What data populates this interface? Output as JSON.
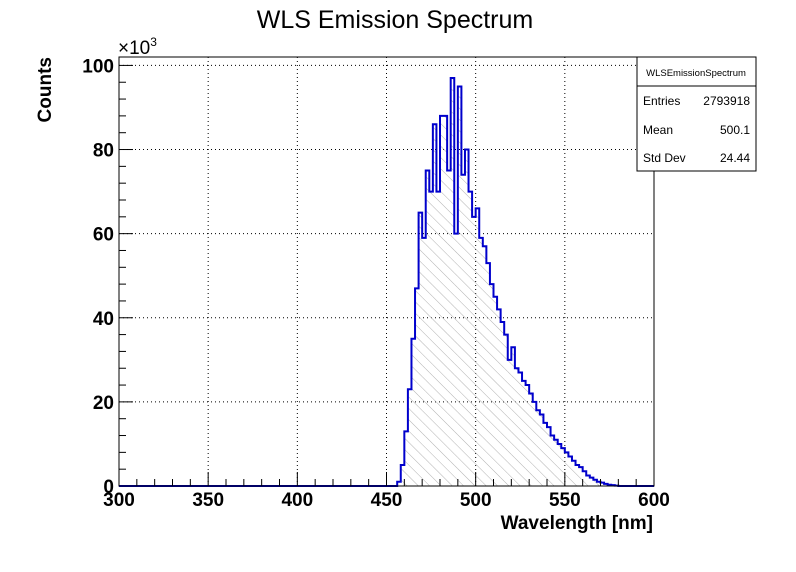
{
  "chart_data": {
    "type": "histogram",
    "title": "WLS Emission Spectrum",
    "xlabel": "Wavelength [nm]",
    "ylabel": "Counts",
    "xlim": [
      300,
      600
    ],
    "ylim": [
      0,
      102000
    ],
    "y_exponent_label": "×10",
    "y_exponent_power": "3",
    "x_ticks": [
      300,
      350,
      400,
      450,
      500,
      550,
      600
    ],
    "x_tick_labels": [
      "300",
      "350",
      "400",
      "450",
      "500",
      "550",
      "600"
    ],
    "y_ticks": [
      0,
      20000,
      40000,
      60000,
      80000,
      100000
    ],
    "y_tick_labels": [
      "0",
      "20",
      "40",
      "60",
      "80",
      "100"
    ],
    "grid": true,
    "line_color": "#0000cc",
    "fill_pattern": "hatched-gray",
    "bin_width": 2,
    "bins_start": 456,
    "counts": [
      1000,
      5000,
      13000,
      23000,
      35000,
      47000,
      65000,
      59000,
      75000,
      70000,
      86000,
      70000,
      88000,
      88000,
      75000,
      97000,
      60000,
      95000,
      74000,
      80000,
      70000,
      64000,
      66000,
      59000,
      57000,
      53000,
      48000,
      45000,
      42000,
      39000,
      36000,
      30000,
      33000,
      28000,
      27000,
      25000,
      24000,
      22000,
      20000,
      18000,
      17000,
      15000,
      14000,
      12000,
      11000,
      10000,
      9000,
      8000,
      7000,
      6000,
      5000,
      4500,
      3500,
      2500,
      2000,
      1500,
      1000,
      800,
      500,
      300,
      200,
      100
    ],
    "stats": {
      "name": "WLSEmissionSpectrum",
      "rows": [
        {
          "label": "Entries",
          "value": "2793918"
        },
        {
          "label": "Mean",
          "value": "500.1"
        },
        {
          "label": "Std Dev",
          "value": "24.44"
        }
      ]
    }
  }
}
